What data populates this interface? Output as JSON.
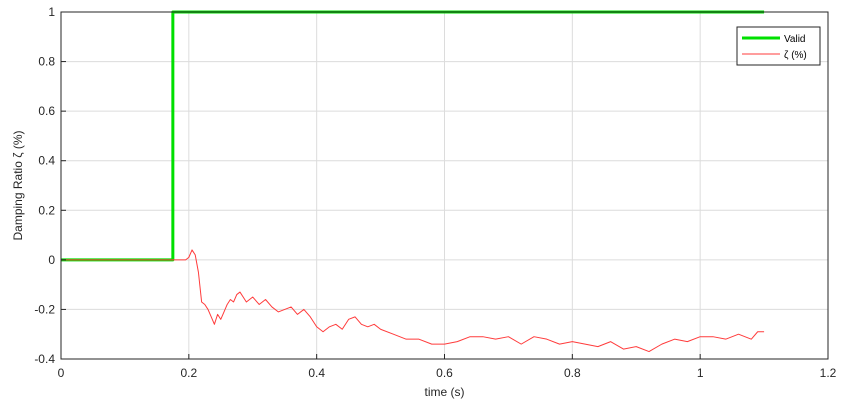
{
  "chart_data": {
    "type": "line",
    "title": "",
    "xlabel": "time (s)",
    "ylabel": "Damping Ratio   ζ (%)",
    "xlim": [
      0,
      1.2
    ],
    "ylim": [
      -0.4,
      1
    ],
    "xticks": [
      0,
      0.2,
      0.4,
      0.6,
      0.8,
      1,
      1.2
    ],
    "xtick_labels": [
      "0",
      "0.2",
      "0.4",
      "0.6",
      "0.8",
      "1",
      "1.2"
    ],
    "yticks": [
      -0.4,
      -0.2,
      0,
      0.2,
      0.4,
      0.6,
      0.8,
      1
    ],
    "ytick_labels": [
      "-0.4",
      "-0.2",
      "0",
      "0.2",
      "0.4",
      "0.6",
      "0.8",
      "1"
    ],
    "grid": true,
    "legend_position": "top-right",
    "series": [
      {
        "name": "Valid",
        "color": "#00e000",
        "x": [
          0,
          0.175,
          0.175,
          1.1
        ],
        "y": [
          0,
          0,
          1,
          1
        ]
      },
      {
        "name": "ζ (%)",
        "color": "#ff3b3b",
        "x": [
          0,
          0.195,
          0.2,
          0.205,
          0.21,
          0.215,
          0.22,
          0.225,
          0.23,
          0.235,
          0.24,
          0.245,
          0.25,
          0.255,
          0.26,
          0.265,
          0.27,
          0.275,
          0.28,
          0.285,
          0.29,
          0.3,
          0.31,
          0.32,
          0.33,
          0.34,
          0.35,
          0.36,
          0.37,
          0.38,
          0.39,
          0.4,
          0.41,
          0.42,
          0.43,
          0.44,
          0.45,
          0.46,
          0.47,
          0.48,
          0.49,
          0.5,
          0.52,
          0.54,
          0.56,
          0.58,
          0.6,
          0.62,
          0.64,
          0.66,
          0.68,
          0.7,
          0.72,
          0.74,
          0.76,
          0.78,
          0.8,
          0.82,
          0.84,
          0.86,
          0.88,
          0.9,
          0.92,
          0.94,
          0.96,
          0.98,
          1.0,
          1.02,
          1.04,
          1.06,
          1.08,
          1.09,
          1.1
        ],
        "y": [
          0,
          0,
          0.01,
          0.04,
          0.02,
          -0.05,
          -0.17,
          -0.18,
          -0.2,
          -0.23,
          -0.26,
          -0.22,
          -0.24,
          -0.21,
          -0.18,
          -0.16,
          -0.17,
          -0.14,
          -0.13,
          -0.15,
          -0.17,
          -0.15,
          -0.18,
          -0.16,
          -0.19,
          -0.21,
          -0.2,
          -0.19,
          -0.22,
          -0.2,
          -0.23,
          -0.27,
          -0.29,
          -0.27,
          -0.26,
          -0.28,
          -0.24,
          -0.23,
          -0.26,
          -0.27,
          -0.26,
          -0.28,
          -0.3,
          -0.32,
          -0.32,
          -0.34,
          -0.34,
          -0.33,
          -0.31,
          -0.31,
          -0.32,
          -0.31,
          -0.34,
          -0.31,
          -0.32,
          -0.34,
          -0.33,
          -0.34,
          -0.35,
          -0.33,
          -0.36,
          -0.35,
          -0.37,
          -0.34,
          -0.32,
          -0.33,
          -0.31,
          -0.31,
          -0.32,
          -0.3,
          -0.32,
          -0.29,
          -0.29
        ]
      }
    ]
  }
}
